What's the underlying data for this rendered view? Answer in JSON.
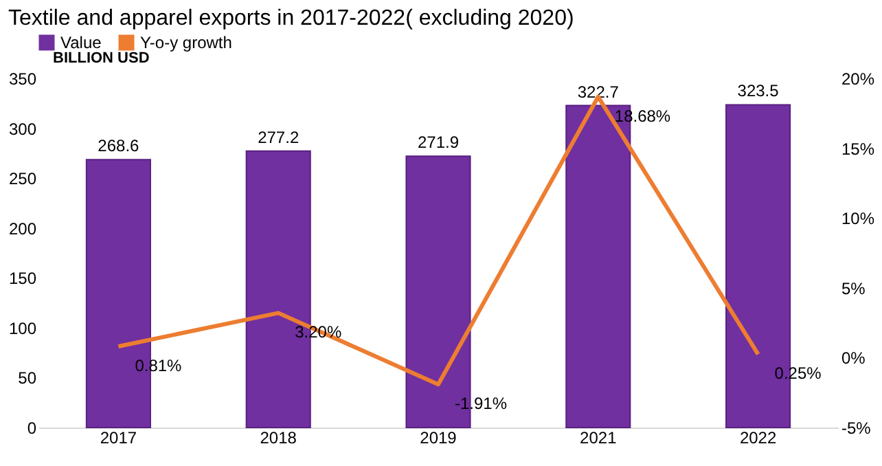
{
  "chart_data": {
    "type": "bar",
    "title": "Textile  and apparel exports in 2017-2022( excluding 2020)",
    "ylabel": "BILLION USD",
    "categories": [
      "2017",
      "2018",
      "2019",
      "2021",
      "2022"
    ],
    "series": [
      {
        "name": "Value",
        "color": "#7030a0",
        "values": [
          268.6,
          277.2,
          271.9,
          322.7,
          323.5
        ],
        "value_labels": [
          "268.6",
          "277.2",
          "271.9",
          "322.7",
          "323.5"
        ]
      },
      {
        "name": "Y-o-y growth",
        "type": "line",
        "axis": "y2",
        "color": "#ed7d31",
        "values": [
          0.81,
          3.2,
          -1.91,
          18.68,
          0.25
        ],
        "value_labels": [
          "0.81%",
          "3.20%",
          "-1.91%",
          "18.68%",
          "0.25%"
        ]
      }
    ],
    "ylim": [
      0,
      350
    ],
    "yticks": [
      0,
      50,
      100,
      150,
      200,
      250,
      300,
      350
    ],
    "y2lim": [
      -5,
      20
    ],
    "y2ticks": [
      {
        "value": -5,
        "label": "-5%"
      },
      {
        "value": 0,
        "label": "0%"
      },
      {
        "value": 5,
        "label": "5%"
      },
      {
        "value": 10,
        "label": "10%"
      },
      {
        "value": 15,
        "label": "15%"
      },
      {
        "value": 20,
        "label": "20%"
      }
    ],
    "legend": "top",
    "grid": false
  }
}
